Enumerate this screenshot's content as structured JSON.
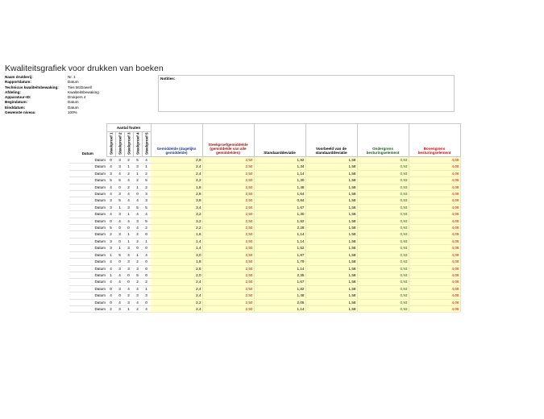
{
  "title": "Kwaliteitsgrafiek voor drukken van boeken",
  "info": [
    {
      "label": "Naam drukkerij:",
      "value": "Nr. 1"
    },
    {
      "label": "Rapportdatum:",
      "value": "Datum"
    },
    {
      "label": "Technicus kwaliteitsbewaking:",
      "value": "Ties McDowell"
    },
    {
      "label": "Afdeling:",
      "value": "Kwaliteitsbewaking"
    },
    {
      "label": "Apparatuur-ID:",
      "value": "Drukpers 4"
    },
    {
      "label": "Begindatum:",
      "value": "Datum"
    },
    {
      "label": "Einddatum:",
      "value": "Datum"
    },
    {
      "label": "Gewenste niveau",
      "value": "100%"
    }
  ],
  "notes_label": "Notities:",
  "headers": {
    "datum": "Datum",
    "group": "Aantal fouten",
    "samples": [
      "Steekproef 1",
      "Steekproef 2",
      "Steekproef 3",
      "Steekproef 4",
      "Steekproef 5"
    ],
    "avg": "Gemiddelde (dagelijks gemiddelde)",
    "sample_avg": "Steekproefgemiddelde (gemiddelde van alle gemiddelden)",
    "stdev": "Standaarddeviatie",
    "example_stdev": "Voorbeeld van de standaarddeviatie",
    "lower": "Ondergrens besturingselement",
    "upper": "Bovengrens besturingselement"
  },
  "rows": [
    {
      "date": "Datum",
      "s": [
        "0",
        "3",
        "2",
        "5",
        "4"
      ],
      "avg": "2,8",
      "savg": "2,50",
      "sd": "1,92",
      "esd": "1,58",
      "lo": "0,93",
      "hi": "4,08"
    },
    {
      "date": "Datum",
      "s": [
        "4",
        "3",
        "1",
        "3",
        "1"
      ],
      "avg": "2,4",
      "savg": "2,50",
      "sd": "1,34",
      "esd": "1,58",
      "lo": "0,93",
      "hi": "4,08"
    },
    {
      "date": "Datum",
      "s": [
        "3",
        "4",
        "2",
        "1",
        "2"
      ],
      "avg": "2,4",
      "savg": "2,50",
      "sd": "1,14",
      "esd": "1,58",
      "lo": "0,93",
      "hi": "4,08"
    },
    {
      "date": "Datum",
      "s": [
        "5",
        "5",
        "4",
        "2",
        "5"
      ],
      "avg": "4,2",
      "savg": "2,50",
      "sd": "1,30",
      "esd": "1,58",
      "lo": "0,93",
      "hi": "4,08"
    },
    {
      "date": "Datum",
      "s": [
        "4",
        "0",
        "2",
        "1",
        "2"
      ],
      "avg": "1,8",
      "savg": "2,50",
      "sd": "1,48",
      "esd": "1,58",
      "lo": "0,93",
      "hi": "4,08"
    },
    {
      "date": "Datum",
      "s": [
        "4",
        "3",
        "4",
        "0",
        "3"
      ],
      "avg": "2,8",
      "savg": "2,50",
      "sd": "1,64",
      "esd": "1,58",
      "lo": "0,93",
      "hi": "4,08"
    },
    {
      "date": "Datum",
      "s": [
        "3",
        "5",
        "4",
        "4",
        "3"
      ],
      "avg": "3,8",
      "savg": "2,50",
      "sd": "0,84",
      "esd": "1,58",
      "lo": "0,93",
      "hi": "4,08"
    },
    {
      "date": "Datum",
      "s": [
        "3",
        "1",
        "3",
        "5",
        "5"
      ],
      "avg": "3,4",
      "savg": "2,50",
      "sd": "1,67",
      "esd": "1,58",
      "lo": "0,93",
      "hi": "4,08"
    },
    {
      "date": "Datum",
      "s": [
        "4",
        "3",
        "1",
        "4",
        "4"
      ],
      "avg": "3,2",
      "savg": "2,50",
      "sd": "1,30",
      "esd": "1,58",
      "lo": "0,93",
      "hi": "4,08"
    },
    {
      "date": "Datum",
      "s": [
        "0",
        "4",
        "4",
        "3",
        "5"
      ],
      "avg": "3,2",
      "savg": "2,50",
      "sd": "1,92",
      "esd": "1,58",
      "lo": "0,93",
      "hi": "4,08"
    },
    {
      "date": "Datum",
      "s": [
        "5",
        "0",
        "0",
        "4",
        "2"
      ],
      "avg": "2,2",
      "savg": "2,50",
      "sd": "2,28",
      "esd": "1,58",
      "lo": "0,93",
      "hi": "4,08"
    },
    {
      "date": "Datum",
      "s": [
        "2",
        "3",
        "1",
        "2",
        "0"
      ],
      "avg": "1,6",
      "savg": "2,50",
      "sd": "1,14",
      "esd": "1,58",
      "lo": "0,93",
      "hi": "4,08"
    },
    {
      "date": "Datum",
      "s": [
        "3",
        "0",
        "1",
        "2",
        "1"
      ],
      "avg": "1,4",
      "savg": "2,50",
      "sd": "1,14",
      "esd": "1,58",
      "lo": "0,93",
      "hi": "4,08"
    },
    {
      "date": "Datum",
      "s": [
        "3",
        "1",
        "3",
        "0",
        "0"
      ],
      "avg": "1,4",
      "savg": "2,50",
      "sd": "1,52",
      "esd": "1,58",
      "lo": "0,93",
      "hi": "4,08"
    },
    {
      "date": "Datum",
      "s": [
        "1",
        "5",
        "4",
        "1",
        "4"
      ],
      "avg": "3,0",
      "savg": "2,50",
      "sd": "1,87",
      "esd": "1,58",
      "lo": "0,93",
      "hi": "4,08"
    },
    {
      "date": "Datum",
      "s": [
        "4",
        "0",
        "3",
        "2",
        "0"
      ],
      "avg": "1,8",
      "savg": "2,50",
      "sd": "1,79",
      "esd": "1,58",
      "lo": "0,93",
      "hi": "4,08"
    },
    {
      "date": "Datum",
      "s": [
        "4",
        "3",
        "3",
        "3",
        "0"
      ],
      "avg": "2,6",
      "savg": "2,50",
      "sd": "1,14",
      "esd": "1,58",
      "lo": "0,93",
      "hi": "4,08"
    },
    {
      "date": "Datum",
      "s": [
        "1",
        "4",
        "0",
        "5",
        "0"
      ],
      "avg": "2,0",
      "savg": "2,50",
      "sd": "2,35",
      "esd": "1,58",
      "lo": "0,93",
      "hi": "4,08"
    },
    {
      "date": "Datum",
      "s": [
        "4",
        "4",
        "0",
        "2",
        "2"
      ],
      "avg": "2,4",
      "savg": "2,50",
      "sd": "1,67",
      "esd": "1,58",
      "lo": "0,93",
      "hi": "4,08"
    },
    {
      "date": "Datum",
      "s": [
        "0",
        "3",
        "4",
        "4",
        "1"
      ],
      "avg": "2,4",
      "savg": "2,50",
      "sd": "1,82",
      "esd": "1,58",
      "lo": "0,93",
      "hi": "4,08"
    },
    {
      "date": "Datum",
      "s": [
        "4",
        "0",
        "2",
        "3",
        "3"
      ],
      "avg": "2,4",
      "savg": "2,50",
      "sd": "1,48",
      "esd": "1,58",
      "lo": "0,93",
      "hi": "4,08"
    },
    {
      "date": "Datum",
      "s": [
        "0",
        "4",
        "3",
        "4",
        "0"
      ],
      "avg": "2,2",
      "savg": "2,50",
      "sd": "2,05",
      "esd": "1,58",
      "lo": "0,93",
      "hi": "4,08"
    },
    {
      "date": "Datum",
      "s": [
        "2",
        "3",
        "1",
        "2",
        "4"
      ],
      "avg": "2,4",
      "savg": "2,50",
      "sd": "1,14",
      "esd": "1,58",
      "lo": "0,93",
      "hi": "4,08"
    }
  ],
  "colors": {
    "avg_header": "#1f3c88",
    "sample_avg": "#a01414",
    "lower": "#1e5a1e",
    "upper": "#e60000",
    "highlight_fill": "#ffffc8"
  }
}
